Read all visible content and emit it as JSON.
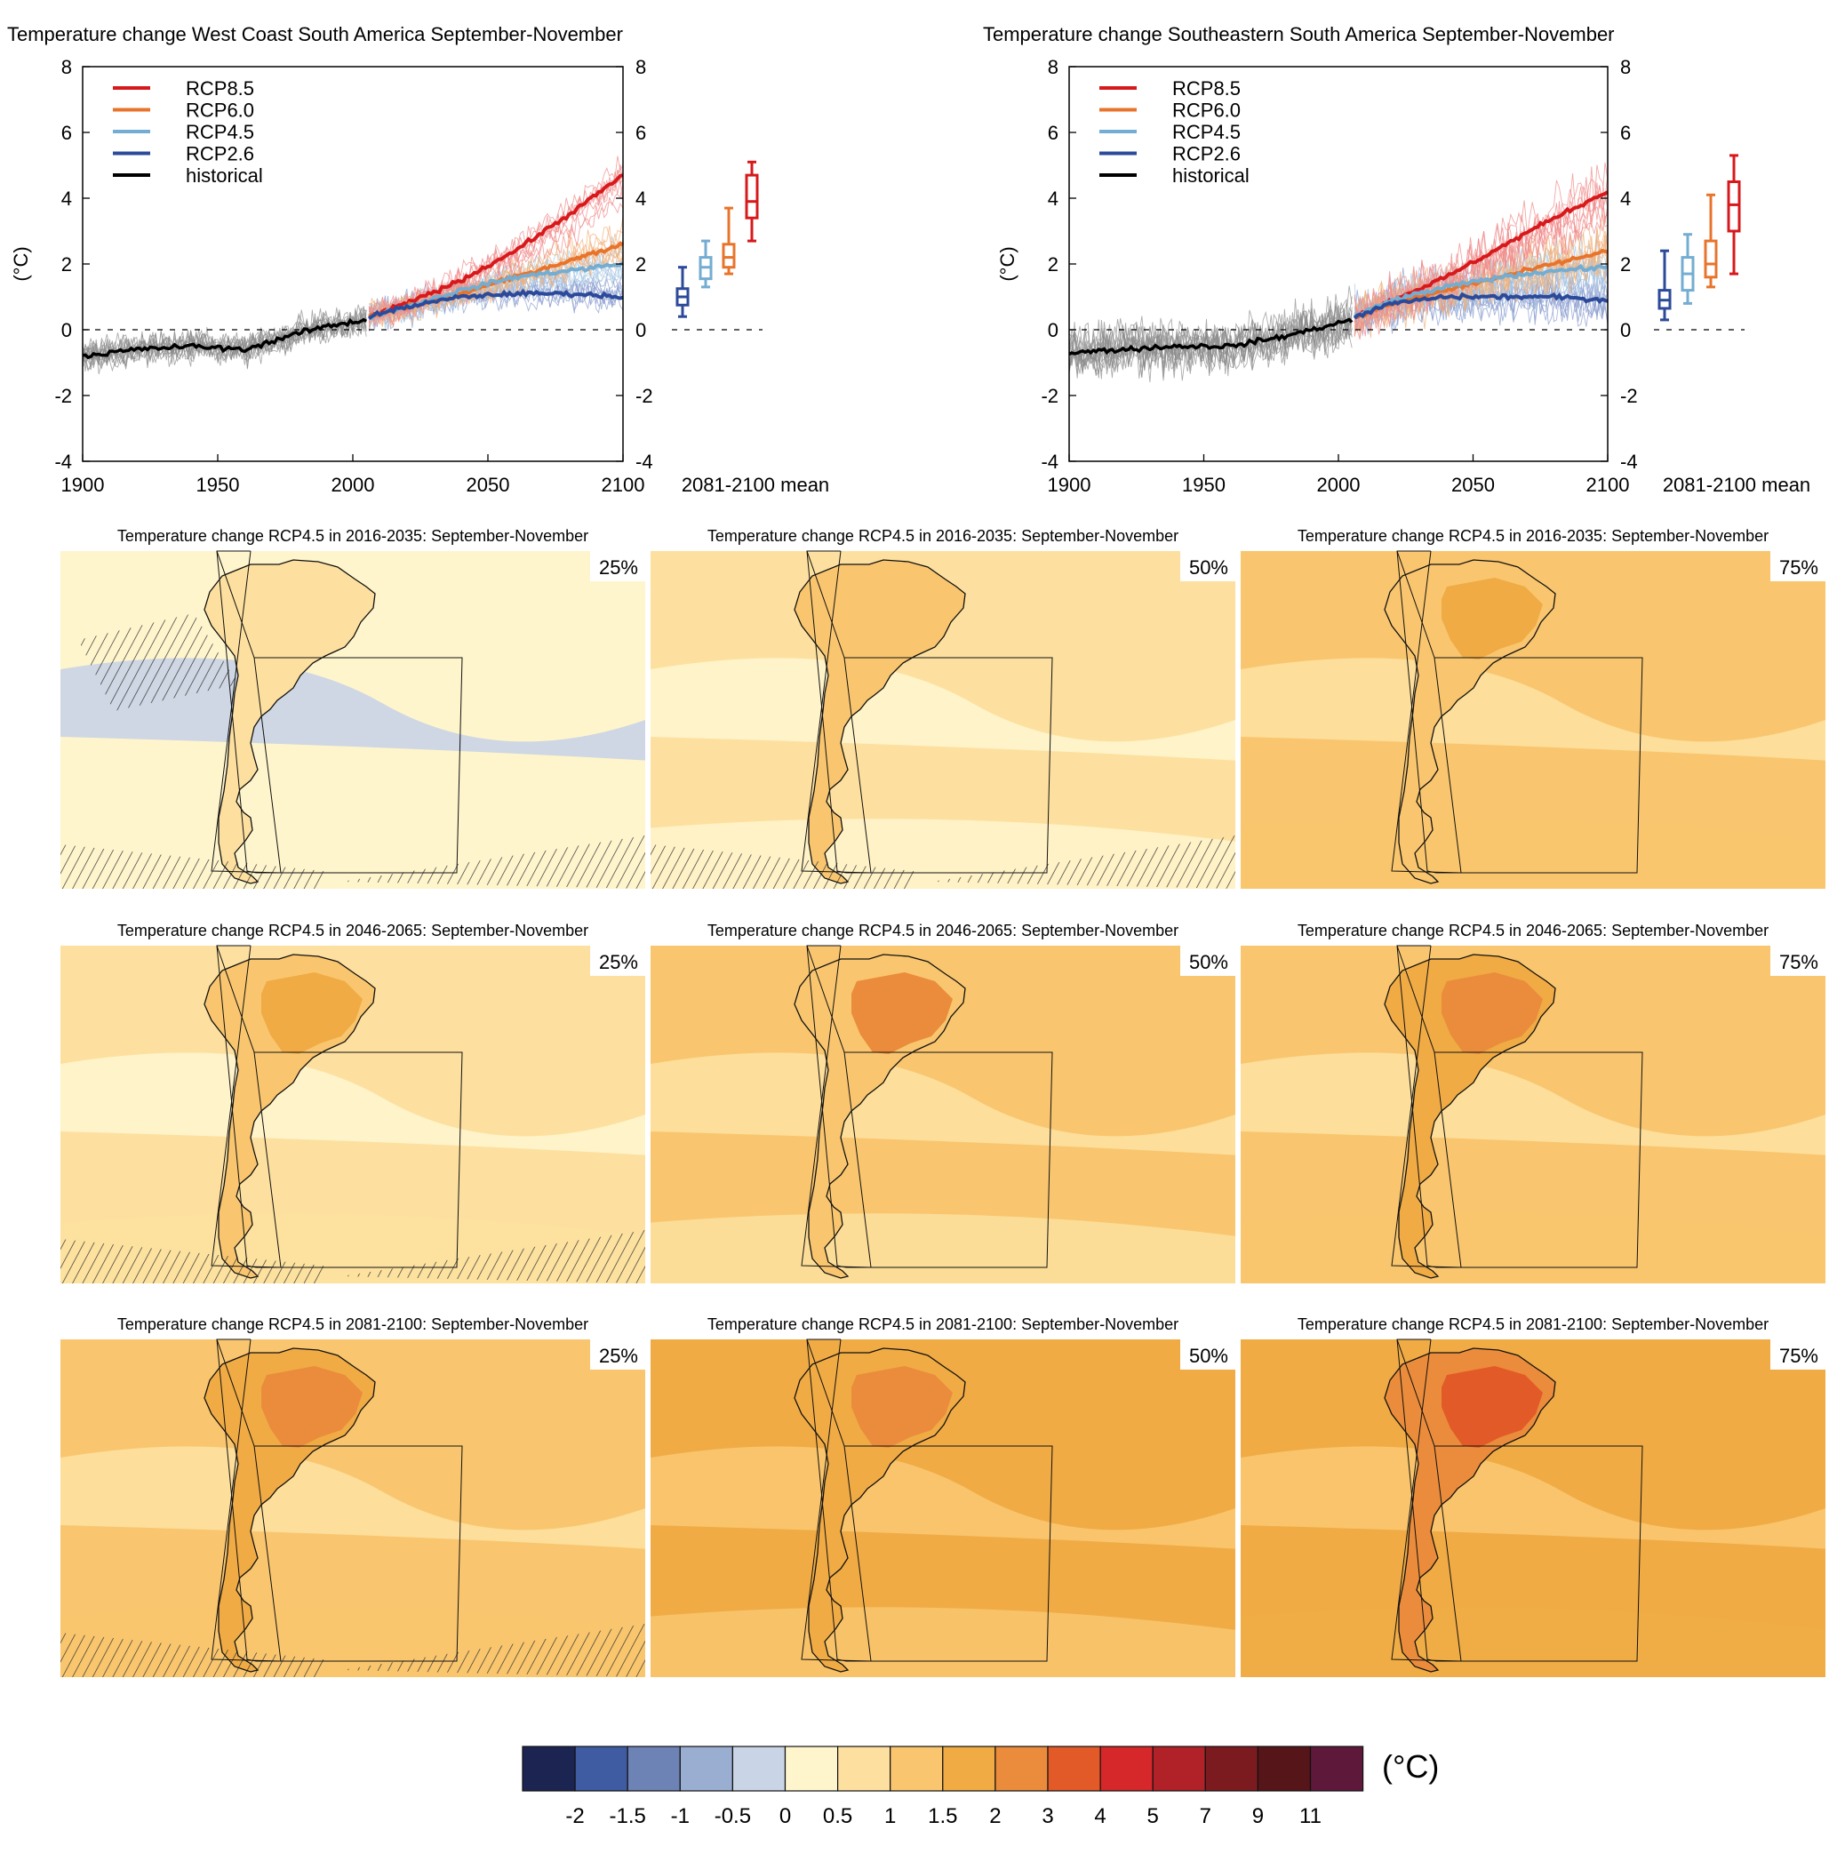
{
  "chart_data": [
    {
      "type": "line",
      "title": "Temperature change West Coast South America September-November",
      "ylabel": "(°C)",
      "xlabel": "",
      "xlim": [
        1900,
        2100
      ],
      "ylim": [
        -4,
        8
      ],
      "xticks": [
        "1900",
        "1950",
        "2000",
        "2050",
        "2100"
      ],
      "yticks": [
        "-4",
        "-2",
        "0",
        "2",
        "4",
        "6",
        "8"
      ],
      "legend_position": "top-left",
      "grid": false,
      "series": [
        {
          "name": "RCP8.5",
          "color": "#d7191c",
          "x": [
            2006,
            2020,
            2040,
            2060,
            2080,
            2100
          ],
          "values": [
            0.4,
            0.8,
            1.5,
            2.4,
            3.5,
            4.7
          ]
        },
        {
          "name": "RCP6.0",
          "color": "#e8742c",
          "x": [
            2006,
            2020,
            2040,
            2060,
            2080,
            2100
          ],
          "values": [
            0.4,
            0.7,
            1.1,
            1.6,
            2.1,
            2.6
          ]
        },
        {
          "name": "RCP4.5",
          "color": "#74add1",
          "x": [
            2006,
            2020,
            2040,
            2060,
            2080,
            2100
          ],
          "values": [
            0.4,
            0.7,
            1.2,
            1.6,
            1.8,
            2.0
          ]
        },
        {
          "name": "RCP2.6",
          "color": "#2c4a9a",
          "x": [
            2006,
            2020,
            2040,
            2060,
            2080,
            2100
          ],
          "values": [
            0.4,
            0.7,
            1.0,
            1.1,
            1.1,
            1.0
          ]
        },
        {
          "name": "historical",
          "color": "#000000",
          "x": [
            1900,
            1920,
            1940,
            1960,
            1980,
            1990,
            2005
          ],
          "values": [
            -0.8,
            -0.6,
            -0.5,
            -0.6,
            -0.1,
            0.1,
            0.3
          ]
        }
      ],
      "boxplot_label": "2081-2100 mean",
      "boxplots": [
        {
          "scenario": "RCP2.6",
          "color": "#2c4a9a",
          "min": 0.4,
          "q1": 0.75,
          "median": 1.0,
          "q3": 1.25,
          "max": 1.9
        },
        {
          "scenario": "RCP4.5",
          "color": "#74add1",
          "min": 1.3,
          "q1": 1.55,
          "median": 1.9,
          "q3": 2.2,
          "max": 2.7
        },
        {
          "scenario": "RCP6.0",
          "color": "#e8742c",
          "min": 1.7,
          "q1": 1.9,
          "median": 2.2,
          "q3": 2.6,
          "max": 3.7
        },
        {
          "scenario": "RCP8.5",
          "color": "#d7191c",
          "min": 2.7,
          "q1": 3.4,
          "median": 3.9,
          "q3": 4.7,
          "max": 5.1
        }
      ]
    },
    {
      "type": "line",
      "title": "Temperature change Southeastern South America September-November",
      "ylabel": "(°C)",
      "xlabel": "",
      "xlim": [
        1900,
        2100
      ],
      "ylim": [
        -4,
        8
      ],
      "xticks": [
        "1900",
        "1950",
        "2000",
        "2050",
        "2100"
      ],
      "yticks": [
        "-4",
        "-2",
        "0",
        "2",
        "4",
        "6",
        "8"
      ],
      "legend_position": "top-left",
      "grid": false,
      "series": [
        {
          "name": "RCP8.5",
          "color": "#d7191c",
          "x": [
            2006,
            2020,
            2040,
            2060,
            2080,
            2100
          ],
          "values": [
            0.4,
            0.9,
            1.6,
            2.5,
            3.4,
            4.2
          ]
        },
        {
          "name": "RCP6.0",
          "color": "#e8742c",
          "x": [
            2006,
            2020,
            2040,
            2060,
            2080,
            2100
          ],
          "values": [
            0.4,
            0.8,
            1.2,
            1.6,
            2.0,
            2.4
          ]
        },
        {
          "name": "RCP4.5",
          "color": "#74add1",
          "x": [
            2006,
            2020,
            2040,
            2060,
            2080,
            2100
          ],
          "values": [
            0.4,
            0.9,
            1.3,
            1.6,
            1.8,
            1.9
          ]
        },
        {
          "name": "RCP2.6",
          "color": "#2c4a9a",
          "x": [
            2006,
            2020,
            2040,
            2060,
            2080,
            2100
          ],
          "values": [
            0.4,
            0.8,
            1.0,
            1.0,
            1.0,
            0.9
          ]
        },
        {
          "name": "historical",
          "color": "#000000",
          "x": [
            1900,
            1920,
            1940,
            1960,
            1980,
            1990,
            2005
          ],
          "values": [
            -0.7,
            -0.6,
            -0.5,
            -0.5,
            -0.2,
            0.0,
            0.3
          ]
        }
      ],
      "boxplot_label": "2081-2100 mean",
      "boxplots": [
        {
          "scenario": "RCP2.6",
          "color": "#2c4a9a",
          "min": 0.3,
          "q1": 0.65,
          "median": 0.9,
          "q3": 1.2,
          "max": 2.4
        },
        {
          "scenario": "RCP4.5",
          "color": "#74add1",
          "min": 0.8,
          "q1": 1.2,
          "median": 1.7,
          "q3": 2.2,
          "max": 2.9
        },
        {
          "scenario": "RCP6.0",
          "color": "#e8742c",
          "min": 1.3,
          "q1": 1.6,
          "median": 2.0,
          "q3": 2.7,
          "max": 4.1
        },
        {
          "scenario": "RCP8.5",
          "color": "#d7191c",
          "min": 1.7,
          "q1": 3.0,
          "median": 3.8,
          "q3": 4.5,
          "max": 5.3
        }
      ]
    },
    {
      "type": "heatmap",
      "maps": [
        {
          "title": "Temperature change RCP4.5 in 2016-2035: September-November",
          "percentile": "25%",
          "background": 0.3,
          "land": 0.7,
          "core": 0.7,
          "hatch_west": true,
          "hatch_south": true
        },
        {
          "title": "Temperature change RCP4.5 in 2016-2035: September-November",
          "percentile": "50%",
          "background": 0.7,
          "land": 1.2,
          "core": 1.3,
          "hatch_west": false,
          "hatch_south": true
        },
        {
          "title": "Temperature change RCP4.5 in 2016-2035: September-November",
          "percentile": "75%",
          "background": 1.2,
          "land": 1.3,
          "core": 1.6,
          "hatch_west": false,
          "hatch_south": false
        },
        {
          "title": "Temperature change RCP4.5 in 2046-2065: September-November",
          "percentile": "25%",
          "background": 0.8,
          "land": 1.2,
          "core": 1.6,
          "hatch_west": false,
          "hatch_south": true
        },
        {
          "title": "Temperature change RCP4.5 in 2046-2065: September-November",
          "percentile": "50%",
          "background": 1.1,
          "land": 1.3,
          "core": 2.1,
          "hatch_west": false,
          "hatch_south": false
        },
        {
          "title": "Temperature change RCP4.5 in 2046-2065: September-November",
          "percentile": "75%",
          "background": 1.3,
          "land": 1.6,
          "core": 2.2,
          "hatch_west": false,
          "hatch_south": false
        },
        {
          "title": "Temperature change RCP4.5 in 2081-2100: September-November",
          "percentile": "25%",
          "background": 1.2,
          "land": 1.6,
          "core": 2.1,
          "hatch_west": false,
          "hatch_south": true
        },
        {
          "title": "Temperature change RCP4.5 in 2081-2100: September-November",
          "percentile": "50%",
          "background": 1.6,
          "land": 1.7,
          "core": 2.3,
          "hatch_west": false,
          "hatch_south": false
        },
        {
          "title": "Temperature change RCP4.5 in 2081-2100: September-November",
          "percentile": "75%",
          "background": 1.7,
          "land": 2.2,
          "core": 3.2,
          "hatch_west": false,
          "hatch_south": false
        }
      ]
    }
  ],
  "colorbar": {
    "unit": "(°C)",
    "ticks": [
      "-2",
      "-1.5",
      "-1",
      "-0.5",
      "0",
      "0.5",
      "1",
      "1.5",
      "2",
      "3",
      "4",
      "5",
      "7",
      "9",
      "11"
    ],
    "colors": [
      "#1c2452",
      "#3f5ba1",
      "#6d82b5",
      "#9aaed1",
      "#c9d4e6",
      "#fff5cd",
      "#fde09f",
      "#f9c66f",
      "#f0ab45",
      "#ea8c3b",
      "#e25a28",
      "#d6272a",
      "#b02128",
      "#7c1b1f",
      "#561519",
      "#5e1839"
    ]
  }
}
